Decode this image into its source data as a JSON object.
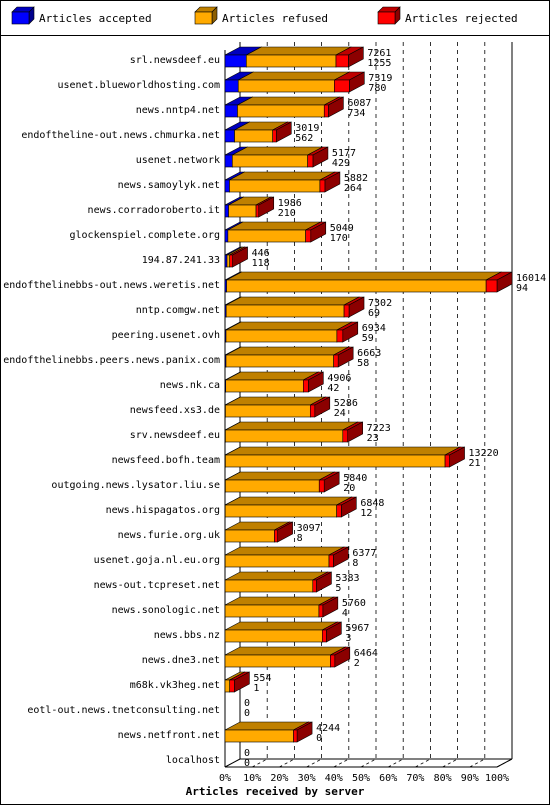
{
  "chart_data": {
    "type": "bar",
    "orientation": "horizontal",
    "stacked": true,
    "xlabel": "Articles received by server",
    "xlim": [
      0,
      100
    ],
    "x_unit": "%",
    "x_ticks": [
      "0%",
      "10%",
      "20%",
      "30%",
      "40%",
      "50%",
      "60%",
      "70%",
      "80%",
      "90%",
      "100%"
    ],
    "grid": "vertical dashed",
    "legend_position": "top",
    "legend": [
      {
        "name": "Articles accepted",
        "color": "#0000ff"
      },
      {
        "name": "Articles refused",
        "color": "#ffaa00"
      },
      {
        "name": "Articles rejected",
        "color": "#ff0000"
      }
    ],
    "categories": [
      "srl.newsdeef.eu",
      "usenet.blueworldhosting.com",
      "news.nntp4.net",
      "endoftheline-out.news.chmurka.net",
      "usenet.network",
      "news.samoylyk.net",
      "news.corradoroberto.it",
      "glockenspiel.complete.org",
      "194.87.241.33",
      "endofthelinebbs-out.news.weretis.net",
      "nntp.comgw.net",
      "peering.usenet.ovh",
      "endofthelinebbs.peers.news.panix.com",
      "news.nk.ca",
      "newsfeed.xs3.de",
      "srv.newsdeef.eu",
      "newsfeed.bofh.team",
      "outgoing.news.lysator.liu.se",
      "news.hispagatos.org",
      "news.furie.org.uk",
      "usenet.goja.nl.eu.org",
      "news-out.tcpreset.net",
      "news.sonologic.net",
      "news.bbs.nz",
      "news.dne3.net",
      "m68k.vk3heg.net",
      "eotl-out.news.tnetconsulting.net",
      "news.netfront.net",
      "localhost"
    ],
    "total_offered": [
      7261,
      7319,
      6087,
      3019,
      5177,
      5882,
      1986,
      5049,
      446,
      16014,
      7302,
      6934,
      6663,
      4906,
      5286,
      7223,
      13220,
      5840,
      6848,
      3097,
      6377,
      5383,
      5760,
      5967,
      6464,
      554,
      0,
      4244,
      0
    ],
    "accepted": [
      1255,
      780,
      734,
      562,
      429,
      264,
      210,
      170,
      118,
      94,
      69,
      59,
      58,
      42,
      24,
      23,
      21,
      20,
      12,
      8,
      8,
      5,
      4,
      3,
      2,
      1,
      0,
      0,
      0
    ],
    "rejected_share": [
      0.1,
      0.12,
      0.04,
      0.07,
      0.06,
      0.05,
      0.08,
      0.06,
      0.38,
      0.04,
      0.04,
      0.05,
      0.04,
      0.06,
      0.05,
      0.04,
      0.02,
      0.05,
      0.04,
      0.06,
      0.04,
      0.04,
      0.04,
      0.04,
      0.04,
      0.5,
      0,
      0.05,
      0
    ]
  }
}
